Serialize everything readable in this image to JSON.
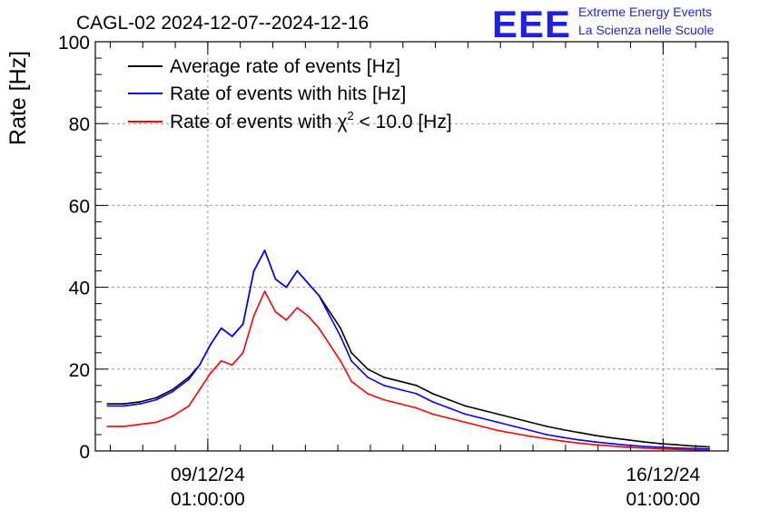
{
  "chart_data": {
    "type": "line",
    "title": "CAGL-02 2024-12-07--2024-12-16",
    "ylabel": "Rate [Hz]",
    "xlabel": "",
    "ylim": [
      0,
      100
    ],
    "xlim": [
      "2024-12-07T07:30",
      "2024-12-17T01:00"
    ],
    "y_ticks": [
      "0",
      "20",
      "40",
      "60",
      "80",
      "100"
    ],
    "x_ticks": [
      {
        "at": "2024-12-09T01:00",
        "date": "09/12/24",
        "time": "01:00:00"
      },
      {
        "at": "2024-12-16T01:00",
        "date": "16/12/24",
        "time": "01:00:00"
      }
    ],
    "grid": true,
    "legend_position": "top-left",
    "legend": [
      {
        "label": "Average rate of events [Hz]",
        "color": "#000000"
      },
      {
        "label": "Rate of events with hits [Hz]",
        "color": "#0000ff"
      },
      {
        "label_prefix": "Rate of events with ",
        "label_symbol": "χ",
        "label_sup": "2",
        "label_suffix": " < 10.0 [Hz]",
        "color": "#ff0000"
      }
    ],
    "series": [
      {
        "name": "Average rate of events [Hz]",
        "color": "#000000",
        "x": [
          "2024-12-07T12:00",
          "2024-12-07T18:00",
          "2024-12-08T00:00",
          "2024-12-08T06:00",
          "2024-12-08T12:00",
          "2024-12-08T18:00",
          "2024-12-08T22:00",
          "2024-12-09T02:00",
          "2024-12-09T06:00",
          "2024-12-09T10:00",
          "2024-12-09T14:00",
          "2024-12-09T18:00",
          "2024-12-09T22:00",
          "2024-12-10T02:00",
          "2024-12-10T06:00",
          "2024-12-10T10:00",
          "2024-12-10T14:00",
          "2024-12-10T18:00",
          "2024-12-10T22:00",
          "2024-12-11T02:00",
          "2024-12-11T06:00",
          "2024-12-11T12:00",
          "2024-12-11T18:00",
          "2024-12-12T00:00",
          "2024-12-12T06:00",
          "2024-12-12T12:00",
          "2024-12-12T18:00",
          "2024-12-13T00:00",
          "2024-12-13T06:00",
          "2024-12-13T12:00",
          "2024-12-13T18:00",
          "2024-12-14T00:00",
          "2024-12-14T06:00",
          "2024-12-14T12:00",
          "2024-12-14T18:00",
          "2024-12-15T00:00",
          "2024-12-15T06:00",
          "2024-12-15T12:00",
          "2024-12-15T18:00",
          "2024-12-16T00:00",
          "2024-12-16T06:00",
          "2024-12-16T12:00",
          "2024-12-16T18:00"
        ],
        "values": [
          11.5,
          11.5,
          12,
          13,
          15,
          18,
          21,
          26,
          30,
          28,
          31,
          44,
          49,
          42,
          40,
          44,
          41,
          38,
          34,
          30,
          24,
          20,
          18,
          17,
          16,
          14,
          12.5,
          11,
          10,
          9,
          8,
          7,
          6,
          5.2,
          4.5,
          3.8,
          3.2,
          2.7,
          2.2,
          1.8,
          1.5,
          1.2,
          1.0
        ]
      },
      {
        "name": "Rate of events with hits [Hz]",
        "color": "#0000ff",
        "x": [
          "2024-12-07T12:00",
          "2024-12-07T18:00",
          "2024-12-08T00:00",
          "2024-12-08T06:00",
          "2024-12-08T12:00",
          "2024-12-08T18:00",
          "2024-12-08T22:00",
          "2024-12-09T02:00",
          "2024-12-09T06:00",
          "2024-12-09T10:00",
          "2024-12-09T14:00",
          "2024-12-09T18:00",
          "2024-12-09T22:00",
          "2024-12-10T02:00",
          "2024-12-10T06:00",
          "2024-12-10T10:00",
          "2024-12-10T14:00",
          "2024-12-10T18:00",
          "2024-12-10T22:00",
          "2024-12-11T02:00",
          "2024-12-11T06:00",
          "2024-12-11T12:00",
          "2024-12-11T18:00",
          "2024-12-12T00:00",
          "2024-12-12T06:00",
          "2024-12-12T12:00",
          "2024-12-12T18:00",
          "2024-12-13T00:00",
          "2024-12-13T06:00",
          "2024-12-13T12:00",
          "2024-12-13T18:00",
          "2024-12-14T00:00",
          "2024-12-14T06:00",
          "2024-12-14T12:00",
          "2024-12-14T18:00",
          "2024-12-15T00:00",
          "2024-12-15T06:00",
          "2024-12-15T12:00",
          "2024-12-15T18:00",
          "2024-12-16T00:00",
          "2024-12-16T06:00",
          "2024-12-16T12:00",
          "2024-12-16T18:00"
        ],
        "values": [
          11,
          11,
          11.5,
          12.5,
          14.5,
          17.5,
          21,
          26,
          30,
          28,
          31,
          44,
          49,
          42,
          40,
          44,
          41,
          38,
          33,
          28,
          22,
          18,
          16,
          15,
          14,
          12,
          10.5,
          9,
          8,
          7,
          6,
          5,
          4,
          3.3,
          2.7,
          2.2,
          1.8,
          1.4,
          1.1,
          0.9,
          0.7,
          0.6,
          0.5
        ]
      },
      {
        "name": "Rate of events with χ2 < 10.0 [Hz]",
        "color": "#ff0000",
        "x": [
          "2024-12-07T12:00",
          "2024-12-07T18:00",
          "2024-12-08T00:00",
          "2024-12-08T06:00",
          "2024-12-08T12:00",
          "2024-12-08T18:00",
          "2024-12-08T22:00",
          "2024-12-09T02:00",
          "2024-12-09T06:00",
          "2024-12-09T10:00",
          "2024-12-09T14:00",
          "2024-12-09T18:00",
          "2024-12-09T22:00",
          "2024-12-10T02:00",
          "2024-12-10T06:00",
          "2024-12-10T10:00",
          "2024-12-10T14:00",
          "2024-12-10T18:00",
          "2024-12-10T22:00",
          "2024-12-11T02:00",
          "2024-12-11T06:00",
          "2024-12-11T12:00",
          "2024-12-11T18:00",
          "2024-12-12T00:00",
          "2024-12-12T06:00",
          "2024-12-12T12:00",
          "2024-12-12T18:00",
          "2024-12-13T00:00",
          "2024-12-13T06:00",
          "2024-12-13T12:00",
          "2024-12-13T18:00",
          "2024-12-14T00:00",
          "2024-12-14T06:00",
          "2024-12-14T12:00",
          "2024-12-14T18:00",
          "2024-12-15T00:00",
          "2024-12-15T06:00",
          "2024-12-15T12:00",
          "2024-12-15T18:00",
          "2024-12-16T00:00",
          "2024-12-16T06:00",
          "2024-12-16T12:00",
          "2024-12-16T18:00"
        ],
        "values": [
          6,
          6,
          6.5,
          7,
          8.5,
          11,
          15,
          19,
          22,
          21,
          24,
          33,
          39,
          34,
          32,
          35,
          33,
          30,
          26,
          22,
          17,
          14,
          12.5,
          11.5,
          10.5,
          9,
          8,
          7,
          6,
          5,
          4.3,
          3.6,
          3,
          2.4,
          1.9,
          1.5,
          1.2,
          0.9,
          0.7,
          0.5,
          0.4,
          0.3,
          0.2
        ]
      }
    ]
  },
  "logo": {
    "letters": "EEE",
    "line1": "Extreme Energy Events",
    "line2": "La Scienza nelle Scuole"
  }
}
